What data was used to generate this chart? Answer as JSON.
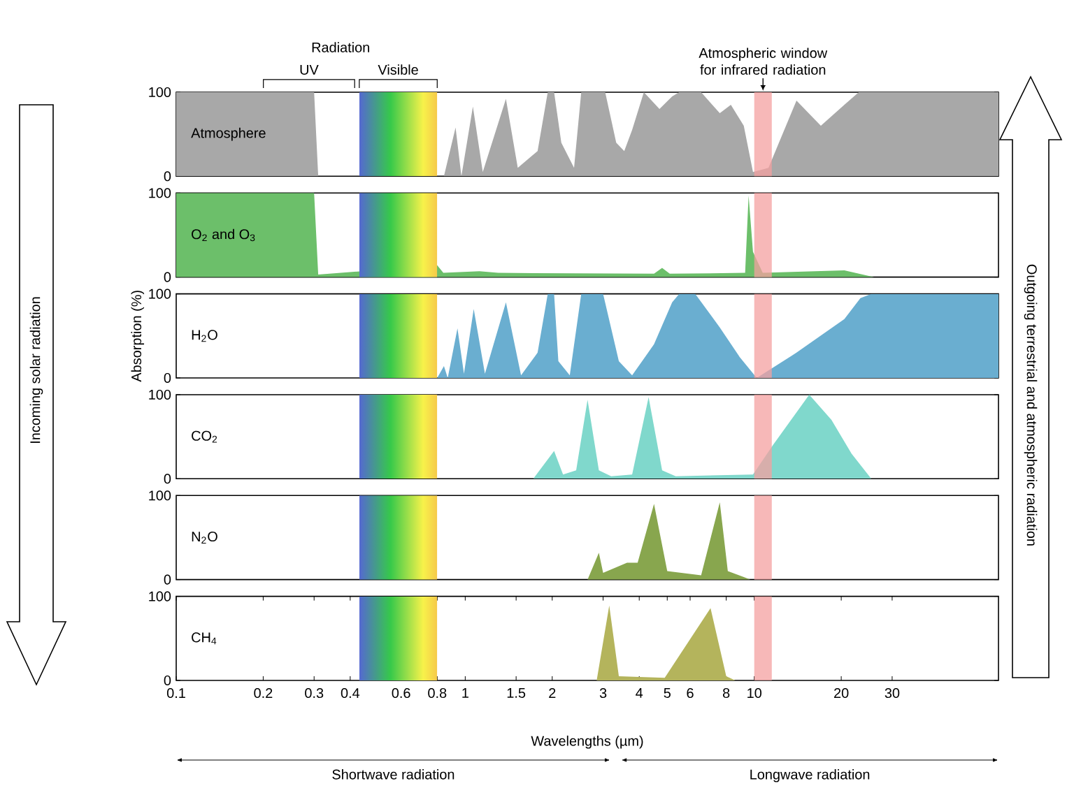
{
  "chart_data": [
    {
      "type": "area",
      "log": "x",
      "xlim": [
        0.1,
        70
      ],
      "xticks": [
        0.1,
        0.2,
        0.3,
        0.4,
        0.6,
        0.8,
        1,
        1.5,
        2,
        3,
        4,
        5,
        6,
        8,
        10,
        20,
        30
      ],
      "ylim": [
        0,
        100
      ],
      "yticks": [
        0,
        100
      ],
      "tick_labels": "y",
      "annotations": [
        "Radiation",
        "UV",
        "Incoming solar radiation",
        "Outgoing terrestrial and atmospheric radiation"
      ],
      "bands": [
        {
          "axis": "x",
          "from": 0.43,
          "to": 0.8,
          "color": "#8e7cc3",
          "label": "Visible"
        },
        {
          "axis": "x",
          "from": 10,
          "to": 11.5,
          "color": "#f4a0a0",
          "label": "Atmospheric window for infrared radiation"
        }
      ],
      "series": [
        {
          "name": "Atmosphere",
          "color": "#a8a8a8",
          "x": [
            0.1,
            0.3,
            0.31,
            0.8,
            0.844,
            0.926,
            0.97,
            1.063,
            1.15,
            1.383,
            1.52,
            1.78,
            1.93,
            2.03,
            2.15,
            2.38,
            2.52,
            3.05,
            3.33,
            3.55,
            3.78,
            4.15,
            4.7,
            5.2,
            5.5,
            6.55,
            7.6,
            8.3,
            9.2,
            9.9,
            11.2,
            14,
            17,
            20.5,
            23,
            70
          ],
          "values": [
            100,
            100,
            0,
            0,
            0,
            58,
            0,
            83,
            5,
            92,
            10,
            30,
            100,
            100,
            40,
            10,
            100,
            100,
            40,
            30,
            55,
            100,
            80,
            95,
            100,
            100,
            75,
            85,
            60,
            5,
            10,
            90,
            60,
            85,
            100,
            100
          ]
        }
      ]
    },
    {
      "type": "area",
      "log": "x",
      "xlim": [
        0.1,
        70
      ],
      "xticks": [
        0.1,
        0.2,
        0.3,
        0.4,
        0.6,
        0.8,
        1,
        1.5,
        2,
        3,
        4,
        5,
        6,
        8,
        10,
        20,
        30
      ],
      "ylim": [
        0,
        100
      ],
      "yticks": [
        0,
        100
      ],
      "tick_labels": "y",
      "bands": [
        {
          "axis": "x",
          "from": 0.43,
          "to": 0.8,
          "color": "#8e7cc3"
        },
        {
          "axis": "x",
          "from": 10,
          "to": 11.5,
          "color": "#f4a0a0"
        }
      ],
      "series": [
        {
          "name": "O$_{2}$ and O$_{3}$",
          "color": "#6cbf6a",
          "x": [
            0.1,
            0.3,
            0.31,
            0.5,
            0.78,
            0.8,
            0.84,
            1.12,
            1.3,
            4.5,
            4.8,
            5.1,
            9.3,
            9.56,
            9.9,
            10.7,
            20.5,
            26,
            70
          ],
          "values": [
            100,
            100,
            3,
            null,
            null,
            14,
            5,
            7,
            5,
            4,
            11,
            4,
            5,
            97,
            30,
            5,
            8,
            0,
            0
          ]
        }
      ]
    },
    {
      "type": "area",
      "log": "x",
      "xlim": [
        0.1,
        70
      ],
      "xticks": [
        0.1,
        0.2,
        0.3,
        0.4,
        0.6,
        0.8,
        1,
        1.5,
        2,
        3,
        4,
        5,
        6,
        8,
        10,
        20,
        30
      ],
      "ylim": [
        0,
        100
      ],
      "yticks": [
        0,
        100
      ],
      "tick_labels": "y",
      "ylabel": "Absorption (%)",
      "bands": [
        {
          "axis": "x",
          "from": 0.43,
          "to": 0.8,
          "color": "#8e7cc3"
        },
        {
          "axis": "x",
          "from": 10,
          "to": 11.5,
          "color": "#f4a0a0"
        }
      ],
      "series": [
        {
          "name": "H$_{2}$O",
          "color": "#6aaed0",
          "x": [
            0.1,
            0.8,
            0.844,
            0.87,
            0.94,
            0.99,
            1.07,
            1.17,
            1.383,
            1.56,
            1.78,
            1.93,
            2.03,
            2.1,
            2.3,
            2.52,
            3,
            3.4,
            3.78,
            4.5,
            5.2,
            5.5,
            6.25,
            7.6,
            8.9,
            10.2,
            14,
            20.5,
            23.3,
            25.4,
            70
          ],
          "values": [
            0,
            0,
            14,
            0,
            59,
            5,
            82,
            5,
            90,
            3,
            30,
            100,
            100,
            20,
            3,
            100,
            100,
            20,
            3,
            40,
            90,
            100,
            100,
            60,
            25,
            0,
            30,
            70,
            95,
            100,
            100
          ]
        }
      ]
    },
    {
      "type": "area",
      "log": "x",
      "xlim": [
        0.1,
        70
      ],
      "xticks": [
        0.1,
        0.2,
        0.3,
        0.4,
        0.6,
        0.8,
        1,
        1.5,
        2,
        3,
        4,
        5,
        6,
        8,
        10,
        20,
        30
      ],
      "ylim": [
        0,
        100
      ],
      "yticks": [
        0,
        100
      ],
      "tick_labels": "y",
      "bands": [
        {
          "axis": "x",
          "from": 0.43,
          "to": 0.8,
          "color": "#8e7cc3"
        },
        {
          "axis": "x",
          "from": 10,
          "to": 11.5,
          "color": "#f4a0a0"
        }
      ],
      "series": [
        {
          "name": "CO$_{2}$",
          "color": "#80d8cc",
          "x": [
            0.1,
            1.72,
            2.03,
            2.18,
            2.42,
            2.65,
            2.9,
            3.2,
            3.78,
            4.31,
            4.8,
            5.35,
            9.9,
            11.6,
            15.5,
            18.5,
            21.7,
            25.4,
            70
          ],
          "values": [
            0,
            0,
            33,
            5,
            10,
            94,
            10,
            3,
            5,
            97,
            10,
            3,
            5,
            40,
            100,
            70,
            30,
            0,
            0
          ]
        }
      ]
    },
    {
      "type": "area",
      "log": "x",
      "xlim": [
        0.1,
        70
      ],
      "xticks": [
        0.1,
        0.2,
        0.3,
        0.4,
        0.6,
        0.8,
        1,
        1.5,
        2,
        3,
        4,
        5,
        6,
        8,
        10,
        20,
        30
      ],
      "ylim": [
        0,
        100
      ],
      "yticks": [
        0,
        100
      ],
      "tick_labels": "y",
      "bands": [
        {
          "axis": "x",
          "from": 0.43,
          "to": 0.8,
          "color": "#8e7cc3"
        },
        {
          "axis": "x",
          "from": 10,
          "to": 11.5,
          "color": "#f4a0a0"
        }
      ],
      "series": [
        {
          "name": "N$_{2}$O",
          "color": "#88a64e",
          "x": [
            0.1,
            2.65,
            2.9,
            3,
            3.63,
            3.95,
            4.5,
            5,
            6.55,
            7.6,
            8.1,
            9.2,
            9.7,
            70
          ],
          "values": [
            0,
            0,
            32,
            8,
            20,
            20,
            90,
            10,
            5,
            92,
            10,
            3,
            0,
            0
          ]
        }
      ]
    },
    {
      "type": "area",
      "log": "x",
      "xlim": [
        0.1,
        70
      ],
      "xticks": [
        0.1,
        0.2,
        0.3,
        0.4,
        0.6,
        0.8,
        1,
        1.5,
        2,
        3,
        4,
        5,
        6,
        8,
        10,
        20,
        30
      ],
      "ylim": [
        0,
        100
      ],
      "yticks": [
        0,
        100
      ],
      "xlabel": "Wavelengths (µm)",
      "annotations": [
        "Shortwave radiation",
        "Longwave radiation"
      ],
      "bands": [
        {
          "axis": "x",
          "from": 0.43,
          "to": 0.8,
          "color": "#8e7cc3"
        },
        {
          "axis": "x",
          "from": 10,
          "to": 11.5,
          "color": "#f4a0a0"
        }
      ],
      "series": [
        {
          "name": "CH$_{4}$",
          "color": "#b4b45c",
          "x": [
            0.1,
            2.85,
            3.15,
            3.4,
            4.9,
            7.06,
            8,
            8.6,
            70
          ],
          "values": [
            0,
            0,
            89,
            5,
            3,
            86,
            5,
            0,
            0
          ]
        }
      ]
    }
  ]
}
